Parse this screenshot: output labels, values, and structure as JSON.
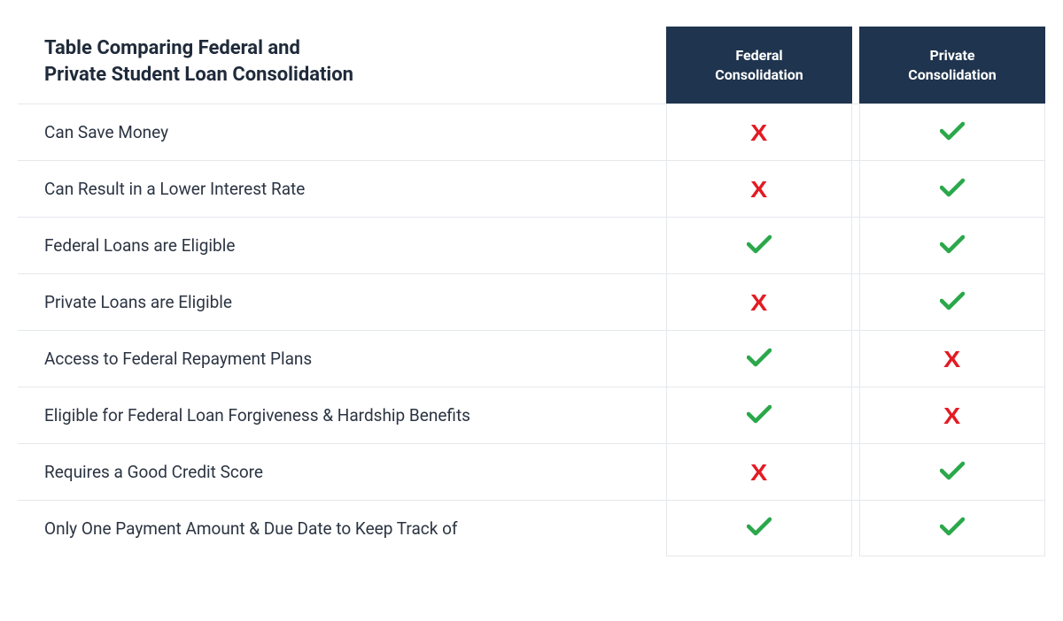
{
  "table": {
    "title_line1": "Table Comparing Federal and",
    "title_line2": "Private Student Loan Consolidation",
    "columns": [
      {
        "label_line1": "Federal",
        "label_line2": "Consolidation"
      },
      {
        "label_line1": "Private",
        "label_line2": "Consolidation"
      }
    ],
    "rows": [
      {
        "feature": "Can Save Money",
        "values": [
          false,
          true
        ]
      },
      {
        "feature": "Can Result in a Lower Interest Rate",
        "values": [
          false,
          true
        ]
      },
      {
        "feature": "Federal Loans are Eligible",
        "values": [
          true,
          true
        ]
      },
      {
        "feature": "Private Loans are Eligible",
        "values": [
          false,
          true
        ]
      },
      {
        "feature": "Access to Federal Repayment Plans",
        "values": [
          true,
          false
        ]
      },
      {
        "feature": "Eligible for Federal Loan Forgiveness & Hardship Benefits",
        "values": [
          true,
          false
        ]
      },
      {
        "feature": "Requires a Good Credit Score",
        "values": [
          false,
          true
        ]
      },
      {
        "feature": "Only One Payment Amount & Due Date to Keep Track of",
        "values": [
          true,
          true
        ]
      }
    ],
    "colors": {
      "header_bg": "#1f344e",
      "header_text": "#ffffff",
      "check": "#2aa84a",
      "x": "#e31b23",
      "border": "#e5e8ec",
      "text": "#2b3442",
      "title": "#1f2a3a"
    }
  }
}
